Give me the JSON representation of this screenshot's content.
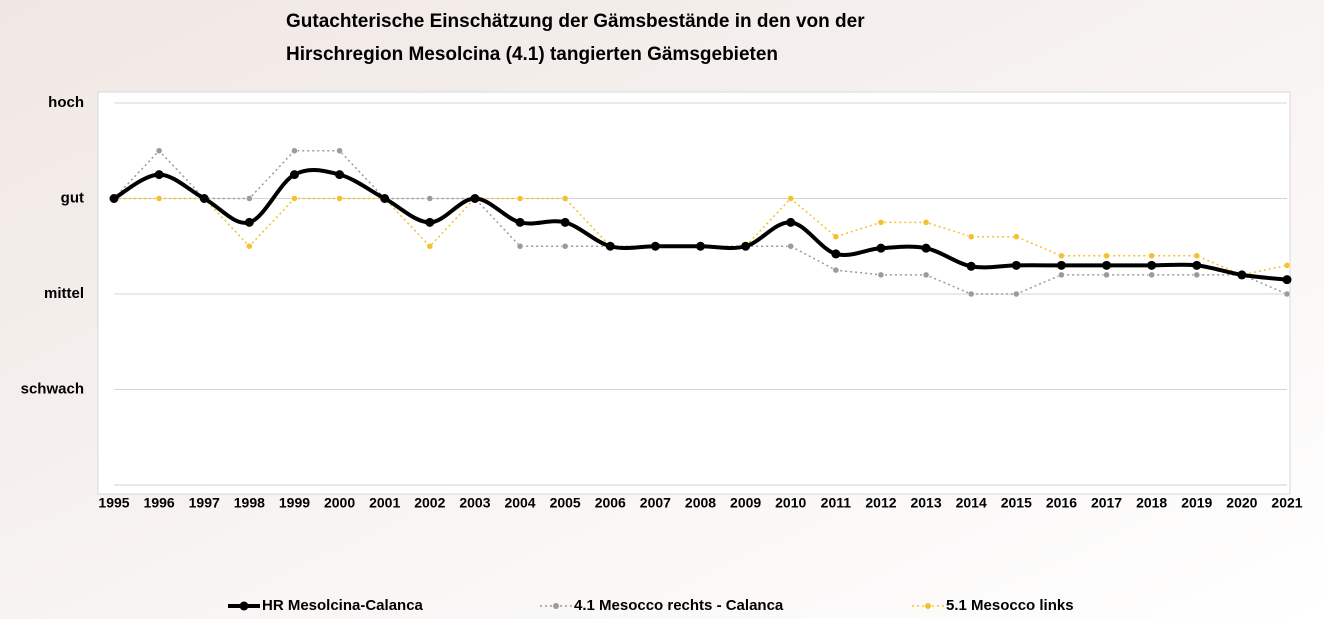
{
  "chart_data": {
    "type": "line",
    "title": [
      "Gutachterische Einschätzung der Gämsbestände in den von der",
      "Hirschregion Mesolcina (4.1) tangierten Gämsgebieten"
    ],
    "categories": [
      "1995",
      "1996",
      "1997",
      "1998",
      "1999",
      "2000",
      "2001",
      "2002",
      "2003",
      "2004",
      "2005",
      "2006",
      "2007",
      "2008",
      "2009",
      "2010",
      "2011",
      "2012",
      "2013",
      "2014",
      "2015",
      "2016",
      "2017",
      "2018",
      "2019",
      "2020",
      "2021"
    ],
    "series": [
      {
        "name": "HR Mesolcina-Calanca",
        "color": "#000000",
        "style": "solid",
        "smooth": true,
        "values": [
          3,
          3.25,
          3,
          2.75,
          3.25,
          3.25,
          3,
          2.75,
          3,
          2.75,
          2.75,
          2.5,
          2.5,
          2.5,
          2.5,
          2.75,
          2.42,
          2.48,
          2.48,
          2.29,
          2.3,
          2.3,
          2.3,
          2.3,
          2.3,
          2.2,
          2.15
        ]
      },
      {
        "name": "4.1 Mesocco rechts - Calanca",
        "color": "#9b9b9b",
        "style": "dotted",
        "smooth": false,
        "values": [
          3,
          3.5,
          3,
          3,
          3.5,
          3.5,
          3,
          3,
          3,
          2.5,
          2.5,
          2.5,
          2.5,
          2.5,
          2.5,
          2.5,
          2.25,
          2.2,
          2.2,
          2,
          2,
          2.2,
          2.2,
          2.2,
          2.2,
          2.2,
          2
        ]
      },
      {
        "name": "5.1 Mesocco links",
        "color": "#f2c12e",
        "style": "dotted",
        "smooth": false,
        "values": [
          3,
          3,
          3,
          2.5,
          3,
          3,
          3,
          2.5,
          3,
          3,
          3,
          2.5,
          2.5,
          2.5,
          2.5,
          3,
          2.6,
          2.75,
          2.75,
          2.6,
          2.6,
          2.4,
          2.4,
          2.4,
          2.4,
          2.2,
          2.3
        ]
      }
    ],
    "ylim": [
      0,
      4
    ],
    "yticks": [
      {
        "value": 1,
        "label": "schwach"
      },
      {
        "value": 2,
        "label": "mittel"
      },
      {
        "value": 3,
        "label": "gut"
      },
      {
        "value": 4,
        "label": "hoch"
      }
    ],
    "grid": true,
    "legend": "bottom"
  }
}
